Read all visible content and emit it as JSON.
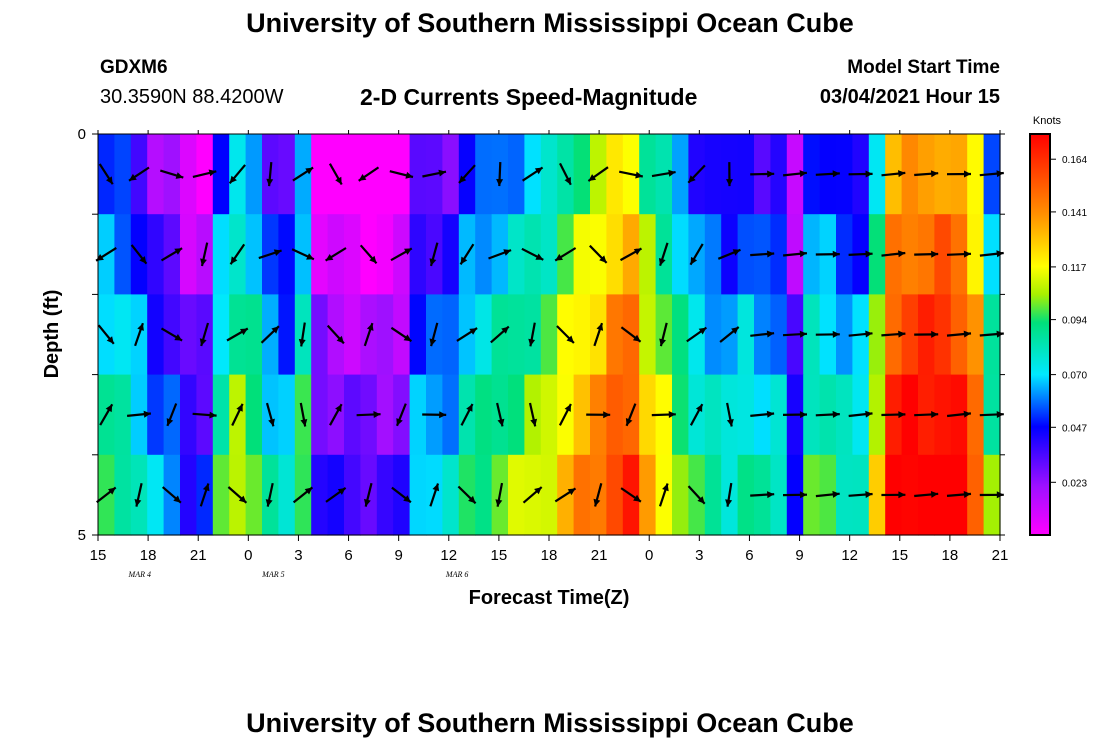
{
  "header": {
    "title": "University of Southern Mississippi Ocean Cube",
    "station_id": "GDXM6",
    "station_coords": "30.3590N 88.4200W",
    "plot_title": "2-D Currents Speed-Magnitude",
    "model_label": "Model Start Time",
    "model_time": "03/04/2021 Hour 15"
  },
  "footer": {
    "title": "University of Southern Mississippi Ocean Cube"
  },
  "chart_data": {
    "type": "heatmap",
    "title": "2-D Currents Speed-Magnitude",
    "xlabel": "Forecast Time(Z)",
    "ylabel": "Depth (ft)",
    "x_ticks": [
      "15",
      "18",
      "21",
      "0",
      "3",
      "6",
      "9",
      "12",
      "15",
      "18",
      "21",
      "0",
      "3",
      "6",
      "9",
      "12",
      "15",
      "18",
      "21"
    ],
    "date_labels": [
      {
        "label": "MAR 4",
        "tick_index": 2.5
      },
      {
        "label": "MAR 5",
        "tick_index": 10.5
      },
      {
        "label": "MAR 6",
        "tick_index": 21.5
      }
    ],
    "y_ticks": [
      "0",
      "5"
    ],
    "ylim": [
      0,
      5
    ],
    "time_range_hours": [
      0,
      54
    ],
    "colorbar": {
      "unit": "Knots",
      "ticks": [
        "0.164",
        "0.141",
        "0.117",
        "0.094",
        "0.070",
        "0.047",
        "0.023"
      ],
      "range": [
        0,
        0.175
      ]
    },
    "depth_rows": 5,
    "time_step_hours": 1,
    "speed_profile_knots": [
      0.063,
      0.06,
      0.05,
      0.034,
      0.03,
      0.015,
      0.016,
      0.063,
      0.08,
      0.072,
      0.05,
      0.043,
      0.07,
      0.01,
      0.006,
      0.005,
      0.004,
      0.004,
      0.005,
      0.04,
      0.041,
      0.042,
      0.06,
      0.064,
      0.07,
      0.075,
      0.08,
      0.085,
      0.1,
      0.11,
      0.116,
      0.13,
      0.134,
      0.102,
      0.09,
      0.074,
      0.06,
      0.055,
      0.05,
      0.058,
      0.05,
      0.05,
      0.02,
      0.065,
      0.062,
      0.053,
      0.052,
      0.09,
      0.143,
      0.148,
      0.15,
      0.152,
      0.145,
      0.125,
      0.07
    ],
    "depth_speed_offsets_knots": [
      -0.012,
      0.0,
      0.012,
      0.022,
      0.032
    ],
    "vectors_note": "Arrows show current direction; most point eastward after forecast hour 39."
  }
}
